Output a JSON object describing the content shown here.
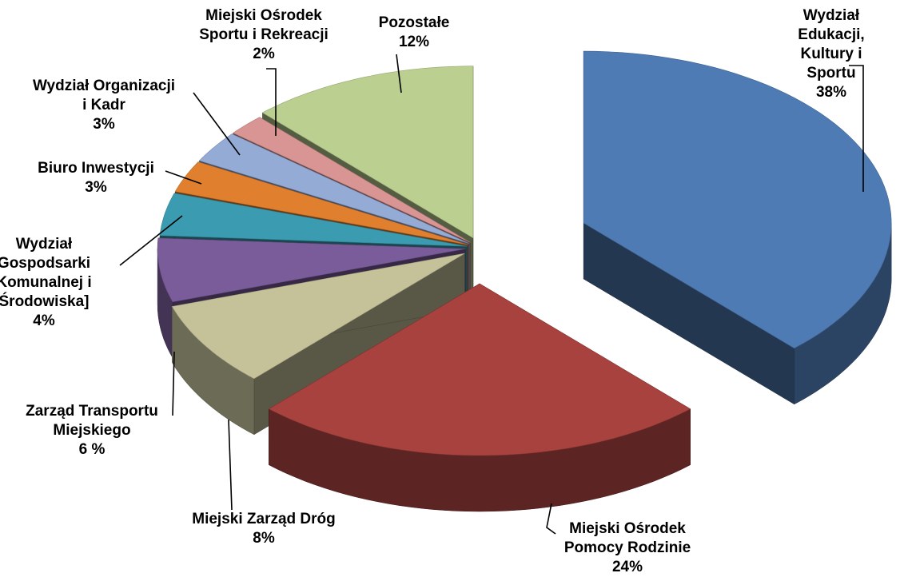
{
  "chart_data": {
    "type": "pie3d",
    "categories": [
      "Wydział Edukacji,\nKultury i Sportu",
      "Miejski Ośrodek\nPomocy Rodzinie",
      "Miejski Zarząd Dróg",
      "Zarząd Transportu\nMiejskiego",
      "Wydział\nGospodsarki\nKomunalnej i\nŚrodowiska]",
      "Biuro Inwestycji",
      "Wydział Organizacji\ni Kadr",
      "Miejski Ośrodek\nSportu i Rekreacji",
      "Pozostałe"
    ],
    "values": [
      38,
      24,
      8,
      6,
      4,
      3,
      3,
      2,
      12
    ],
    "value_labels": [
      "38%",
      "24%",
      "8%",
      "6 %",
      "4%",
      "3%",
      "3%",
      "2%",
      "12%"
    ],
    "colors": [
      "#4f7bb5",
      "#a8423f",
      "#c5c29a",
      "#7a5c9a",
      "#3b9bb0",
      "#e0802f",
      "#94abd6",
      "#d99594",
      "#bacf90"
    ]
  }
}
